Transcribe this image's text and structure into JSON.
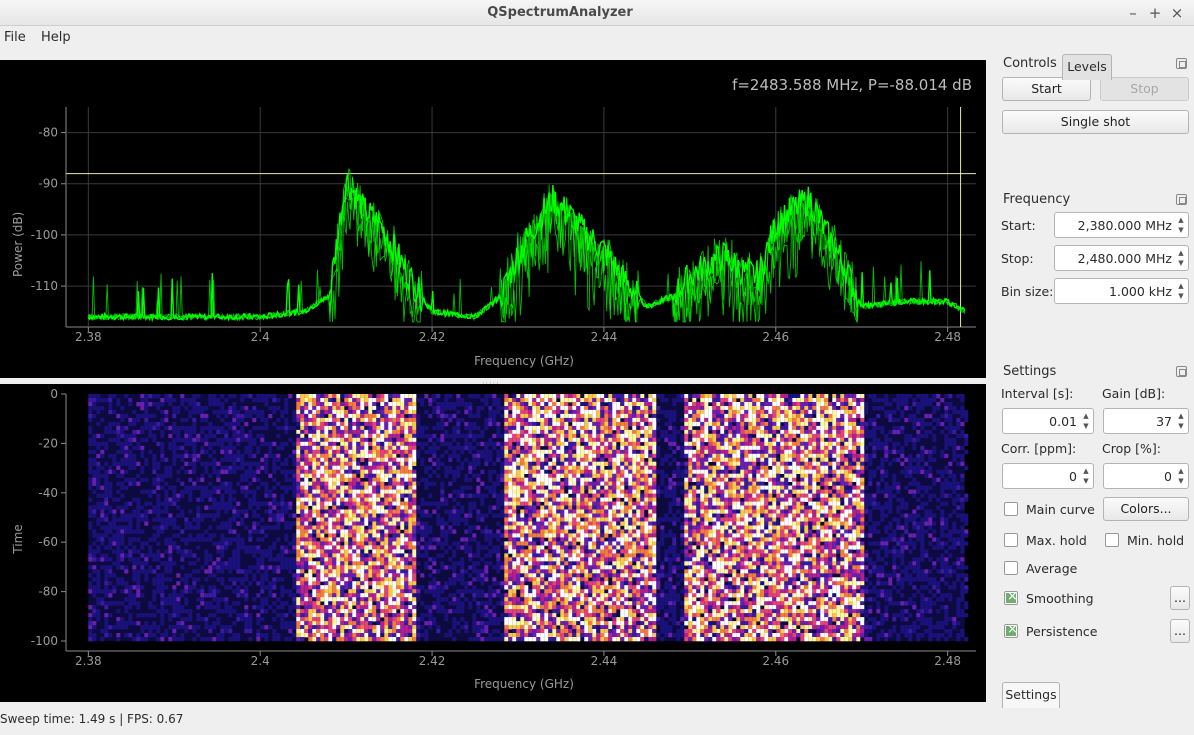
{
  "window": {
    "title": "QSpectrumAnalyzer"
  },
  "menu": [
    {
      "label": "File"
    },
    {
      "label": "Help"
    }
  ],
  "readout": "f=2483.588 MHz, P=-88.014 dB",
  "spectrum_plot": {
    "ylabel": "Power (dB)",
    "xlabel": "Frequency (GHz)",
    "yticks": [
      "-80",
      "-90",
      "-100",
      "-110"
    ],
    "xticks": [
      "2.38",
      "2.4",
      "2.42",
      "2.44",
      "2.46",
      "2.48"
    ]
  },
  "waterfall_plot": {
    "ylabel": "Time",
    "xlabel": "Frequency (GHz)",
    "yticks": [
      "0",
      "-20",
      "-40",
      "-60",
      "-80",
      "-100"
    ],
    "xticks": [
      "2.38",
      "2.4",
      "2.42",
      "2.44",
      "2.46",
      "2.48"
    ]
  },
  "chart_data": [
    {
      "type": "line",
      "xlabel": "Frequency (GHz)",
      "ylabel": "Power (dB)",
      "xlim": [
        2.378,
        2.483
      ],
      "ylim": [
        -118,
        -75
      ],
      "grid": true,
      "color": "#00ff00",
      "cursor": {
        "x": 2.4836,
        "y": -88.014
      },
      "x": [
        2.38,
        2.39,
        2.4,
        2.405,
        2.408,
        2.41,
        2.412,
        2.414,
        2.416,
        2.418,
        2.42,
        2.425,
        2.428,
        2.43,
        2.432,
        2.434,
        2.436,
        2.438,
        2.44,
        2.442,
        2.445,
        2.448,
        2.45,
        2.452,
        2.454,
        2.456,
        2.458,
        2.46,
        2.462,
        2.464,
        2.466,
        2.468,
        2.47,
        2.475,
        2.48,
        2.482
      ],
      "values": [
        -116,
        -116,
        -116,
        -115,
        -112,
        -89,
        -95,
        -98,
        -104,
        -110,
        -115,
        -116,
        -112,
        -104,
        -98,
        -93,
        -96,
        -100,
        -103,
        -108,
        -114,
        -112,
        -108,
        -106,
        -104,
        -107,
        -108,
        -98,
        -95,
        -93,
        -100,
        -106,
        -114,
        -113,
        -113,
        -115
      ]
    },
    {
      "type": "heatmap",
      "xlabel": "Frequency (GHz)",
      "ylabel": "Time",
      "xlim": [
        2.378,
        2.483
      ],
      "ylim": [
        -100,
        0
      ],
      "colormap": "navy-magenta-orange-yellow-white",
      "active_bands": [
        [
          2.404,
          2.418
        ],
        [
          2.428,
          2.446
        ],
        [
          2.449,
          2.47
        ]
      ]
    }
  ],
  "controls": {
    "title": "Controls",
    "start": "Start",
    "stop": "Stop",
    "single_shot": "Single shot"
  },
  "frequency": {
    "title": "Frequency",
    "start_label": "Start:",
    "start_value": "2,380.000 MHz",
    "stop_label": "Stop:",
    "stop_value": "2,480.000 MHz",
    "bin_label": "Bin size:",
    "bin_value": "1.000 kHz"
  },
  "settings": {
    "title": "Settings",
    "interval_label": "Interval [s]:",
    "interval_value": "0.01",
    "gain_label": "Gain [dB]:",
    "gain_value": "37",
    "corr_label": "Corr. [ppm]:",
    "corr_value": "0",
    "crop_label": "Crop [%]:",
    "crop_value": "0",
    "main_curve": "Main curve",
    "colors_button": "Colors...",
    "max_hold": "Max. hold",
    "min_hold": "Min. hold",
    "average": "Average",
    "smoothing": "Smoothing",
    "persistence": "Persistence",
    "more": "..."
  },
  "tabs": [
    {
      "label": "Settings"
    },
    {
      "label": "Levels"
    }
  ],
  "status": "Sweep time: 1.49 s | FPS: 0.67"
}
